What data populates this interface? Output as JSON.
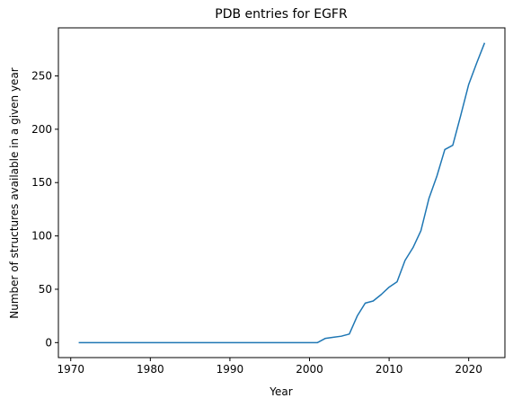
{
  "chart_data": {
    "type": "line",
    "title": "PDB entries for EGFR",
    "xlabel": "Year",
    "ylabel": "Number of structures available in a given year",
    "xlim": [
      1968.45,
      2024.55
    ],
    "ylim": [
      -14.05,
      295.05
    ],
    "xticks": [
      1970,
      1980,
      1990,
      2000,
      2010,
      2020
    ],
    "yticks": [
      0,
      50,
      100,
      150,
      200,
      250
    ],
    "grid": false,
    "color": "#1f77b4",
    "series": [
      {
        "x": [
          1971,
          1975,
          1980,
          1985,
          1990,
          1995,
          2000,
          2001,
          2002,
          2003,
          2004,
          2005,
          2006,
          2007,
          2008,
          2009,
          2010,
          2011,
          2012,
          2013,
          2014,
          2015,
          2016,
          2017,
          2018,
          2019,
          2020,
          2021,
          2022
        ],
        "y": [
          0,
          0,
          0,
          0,
          0,
          0,
          0,
          0,
          4,
          5,
          6,
          8,
          25,
          37,
          39,
          45,
          52,
          57,
          77,
          89,
          105,
          135,
          156,
          181,
          185,
          213,
          242,
          262,
          281
        ]
      }
    ]
  }
}
